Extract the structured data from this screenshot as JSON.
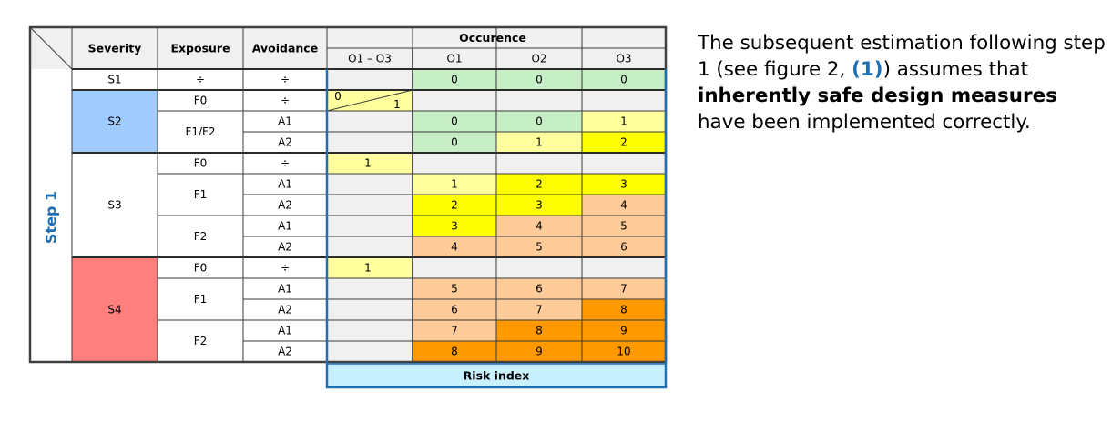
{
  "colors": {
    "blue_cell": "#9fcbff",
    "red_cell": "#ff7f7f",
    "risk_band": "#c9f0ff",
    "band_border": "#1f6fb2",
    "green": "#c6efc6",
    "yellow": "#ffff00",
    "light_yellow": "#ffff9e",
    "peach": "#ffcc99",
    "orange": "#ff9900",
    "grey": "#f0f0f0",
    "step_label": "#1f6fb2"
  },
  "table": {
    "headers": {
      "severity": "Severity",
      "exposure": "Exposure",
      "avoidance": "Avoidance",
      "occurrence": "Occurence",
      "o_range": "O1 – O3",
      "o1": "O1",
      "o2": "O2",
      "o3": "O3"
    },
    "step_label": "Step 1",
    "risk_index_label": "Risk index",
    "severity_groups": [
      {
        "label": "S1",
        "color": "white"
      },
      {
        "label": "S2",
        "color": "blue"
      },
      {
        "label": "S3",
        "color": "white"
      },
      {
        "label": "S4",
        "color": "red"
      }
    ],
    "exposure_groups": [
      {
        "label": "",
        "rows": 1
      },
      {
        "label": "F0",
        "rows": 1
      },
      {
        "label": "F1/F2",
        "rows": 2
      },
      {
        "label": "F0",
        "rows": 1
      },
      {
        "label": "F1",
        "rows": 2
      },
      {
        "label": "F2",
        "rows": 2
      },
      {
        "label": "F0",
        "rows": 1
      },
      {
        "label": "F1",
        "rows": 2
      },
      {
        "label": "F2",
        "rows": 2
      }
    ],
    "rows": [
      {
        "exposure": "÷",
        "avoidance": "÷",
        "range": "",
        "o1": "0",
        "o2": "0",
        "o3": "0",
        "colors": [
          "green",
          "green",
          "green"
        ]
      },
      {
        "exposure": "",
        "avoidance": "÷",
        "range": "split",
        "range_left": "0",
        "range_right": "1",
        "o1": "",
        "o2": "",
        "o3": "",
        "colors": [
          "grey",
          "grey",
          "grey"
        ]
      },
      {
        "exposure": "",
        "avoidance": "A1",
        "range": "",
        "o1": "0",
        "o2": "0",
        "o3": "1",
        "colors": [
          "green",
          "green",
          "light_yellow"
        ]
      },
      {
        "exposure": "",
        "avoidance": "A2",
        "range": "",
        "o1": "0",
        "o2": "1",
        "o3": "2",
        "colors": [
          "green",
          "light_yellow",
          "yellow"
        ]
      },
      {
        "exposure": "",
        "avoidance": "÷",
        "range": "1",
        "o1": "",
        "o2": "",
        "o3": "",
        "colors": [
          "grey",
          "grey",
          "grey"
        ]
      },
      {
        "exposure": "",
        "avoidance": "A1",
        "range": "",
        "o1": "1",
        "o2": "2",
        "o3": "3",
        "colors": [
          "light_yellow",
          "yellow",
          "yellow"
        ]
      },
      {
        "exposure": "",
        "avoidance": "A2",
        "range": "",
        "o1": "2",
        "o2": "3",
        "o3": "4",
        "colors": [
          "yellow",
          "yellow",
          "peach"
        ]
      },
      {
        "exposure": "",
        "avoidance": "A1",
        "range": "",
        "o1": "3",
        "o2": "4",
        "o3": "5",
        "colors": [
          "yellow",
          "peach",
          "peach"
        ]
      },
      {
        "exposure": "",
        "avoidance": "A2",
        "range": "",
        "o1": "4",
        "o2": "5",
        "o3": "6",
        "colors": [
          "peach",
          "peach",
          "peach"
        ]
      },
      {
        "exposure": "",
        "avoidance": "÷",
        "range": "1",
        "o1": "",
        "o2": "",
        "o3": "",
        "colors": [
          "grey",
          "grey",
          "grey"
        ]
      },
      {
        "exposure": "",
        "avoidance": "A1",
        "range": "",
        "o1": "5",
        "o2": "6",
        "o3": "7",
        "colors": [
          "peach",
          "peach",
          "peach"
        ]
      },
      {
        "exposure": "",
        "avoidance": "A2",
        "range": "",
        "o1": "6",
        "o2": "7",
        "o3": "8",
        "colors": [
          "peach",
          "peach",
          "orange"
        ]
      },
      {
        "exposure": "",
        "avoidance": "A1",
        "range": "",
        "o1": "7",
        "o2": "8",
        "o3": "9",
        "colors": [
          "peach",
          "orange",
          "orange"
        ]
      },
      {
        "exposure": "",
        "avoidance": "A2",
        "range": "",
        "o1": "8",
        "o2": "9",
        "o3": "10",
        "colors": [
          "orange",
          "orange",
          "orange"
        ]
      }
    ]
  },
  "side_text": {
    "part1": "The subsequent estimation following step 1 (see figure 2, ",
    "ref": "(1)",
    "part2": ") assumes that ",
    "bold": "inherently safe design measures",
    "part3": " have been implemented correctly."
  }
}
